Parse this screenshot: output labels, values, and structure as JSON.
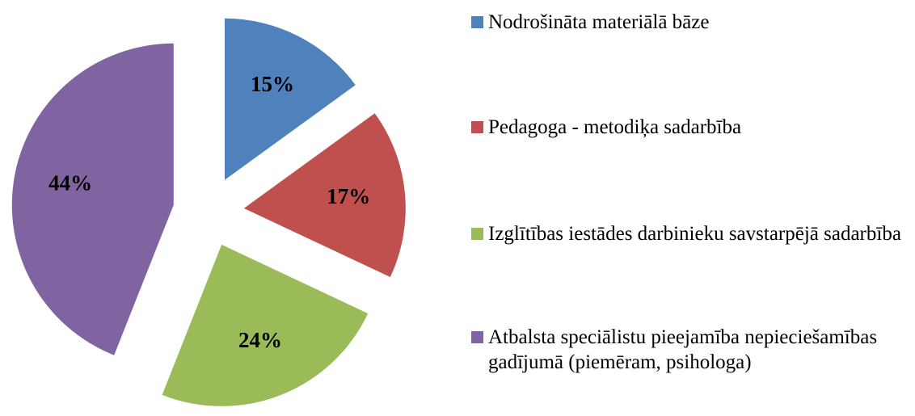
{
  "chart_data": {
    "type": "pie",
    "categories": [
      "Nodrošināta materiālā bāze",
      "Pedagoga - metodiķa sadarbība",
      "Izglītības iestādes darbinieku savstarpējā sadarbība",
      "Atbalsta speciālistu pieejamība nepieciešamības gadījumā (piemēram, psihologa)"
    ],
    "values": [
      15,
      17,
      24,
      44
    ],
    "value_labels": [
      "15%",
      "17%",
      "24%",
      "44%"
    ],
    "colors": [
      "#4f81bd",
      "#c0504d",
      "#9bbb59",
      "#8064a2"
    ],
    "legend": "right"
  }
}
